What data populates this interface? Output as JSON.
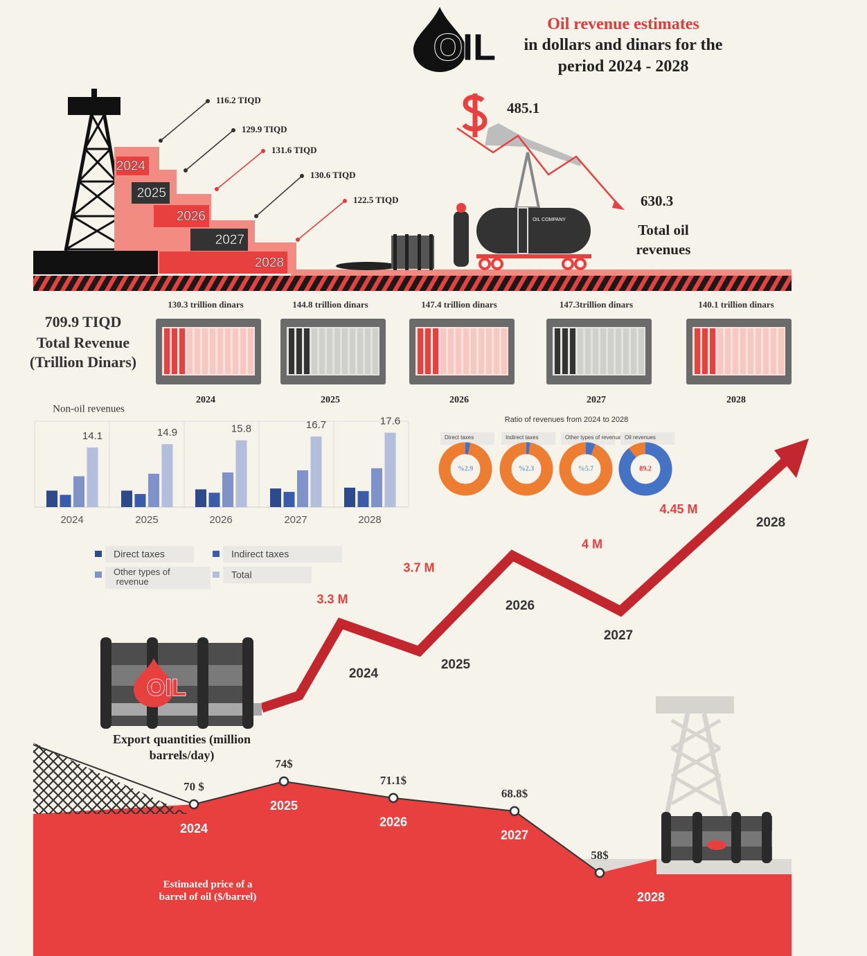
{
  "header": {
    "logo": "OIL",
    "title": "Oil revenue estimates",
    "subtitle_lines": [
      "in dollars and dinars for the",
      "period 2024 - 2028"
    ]
  },
  "dinar_estimates": [
    {
      "year": "2024",
      "label": "116.2 TIQD"
    },
    {
      "year": "2025",
      "label": "129.9 TIQD"
    },
    {
      "year": "2026",
      "label": "131.6 TIQD"
    },
    {
      "year": "2027",
      "label": "130.6 TIQD"
    },
    {
      "year": "2028",
      "label": "122.5 TIQD"
    }
  ],
  "dollar_revenue": {
    "start": "485.1",
    "end": "630.3",
    "caption": "Total oil revenues"
  },
  "tank_label": "OIL COMPANY",
  "total_revenue": {
    "value": "709.9 TIQD",
    "caption": "Total Revenue (Trillion Dinars)"
  },
  "annual_revenue": [
    {
      "label": "130.3 trillion dinars",
      "year": "2024"
    },
    {
      "label": "144.8 trillion dinars",
      "year": "2025"
    },
    {
      "label": "147.4 trillion dinars",
      "year": "2026"
    },
    {
      "label": "147.3trillion dinars",
      "year": "2027"
    },
    {
      "label": "140.1 trillion dinars",
      "year": "2028"
    }
  ],
  "chart_data": [
    {
      "type": "bar",
      "title": "Non-oil revenues",
      "categories": [
        "2024",
        "2025",
        "2026",
        "2027",
        "2028"
      ],
      "series": [
        {
          "name": "Direct taxes",
          "color": "#2d4a8c",
          "values": [
            3.9,
            3.9,
            4.2,
            4.4,
            4.6
          ]
        },
        {
          "name": "Indirect taxes",
          "color": "#3b5cab",
          "values": [
            2.9,
            3.1,
            3.4,
            3.6,
            3.8
          ]
        },
        {
          "name": "Other types of revenue",
          "color": "#7f93c9",
          "values": [
            7.3,
            7.9,
            8.2,
            8.7,
            9.2
          ]
        },
        {
          "name": "Total",
          "color": "#b3bedc",
          "values": [
            14.1,
            14.9,
            15.8,
            16.7,
            17.6
          ]
        }
      ]
    },
    {
      "type": "donut",
      "title": "Ratio of revenues from 2024 to 2028",
      "categories": [
        "Direct taxes",
        "Indirect taxes",
        "Other types of revenue",
        "Oil revenues"
      ],
      "values": [
        2.9,
        2.3,
        5.7,
        89.2
      ],
      "value_labels": [
        "%2.9",
        "%2.3",
        "%5.7",
        "89.2"
      ],
      "color": "#4472c4",
      "rest_color": "#ed7d31",
      "label_colors": [
        "#7d9bd4",
        "#7d9bd4",
        "#7d9bd4",
        "#e03b3b"
      ]
    },
    {
      "type": "line",
      "title": "Export quantities (million barrels/day)",
      "categories": [
        "2024",
        "2025",
        "2026",
        "2027",
        "2028"
      ],
      "values": [
        3.3,
        3.7,
        null,
        4,
        4.45
      ],
      "value_labels": [
        "3.3 M",
        "3.7 M",
        null,
        "4 M",
        "4.45 M"
      ],
      "color": "#c1272d"
    },
    {
      "type": "area",
      "title": "Estimated price of a barrel of oil ($/barrel)",
      "categories": [
        "2024",
        "2025",
        "2026",
        "2027",
        "2028"
      ],
      "values": [
        70,
        74,
        71.1,
        68.8,
        58
      ],
      "value_labels": [
        "70 $",
        "74$",
        "71.1$",
        "68.8$",
        "58$"
      ],
      "color": "#e8403f"
    }
  ]
}
